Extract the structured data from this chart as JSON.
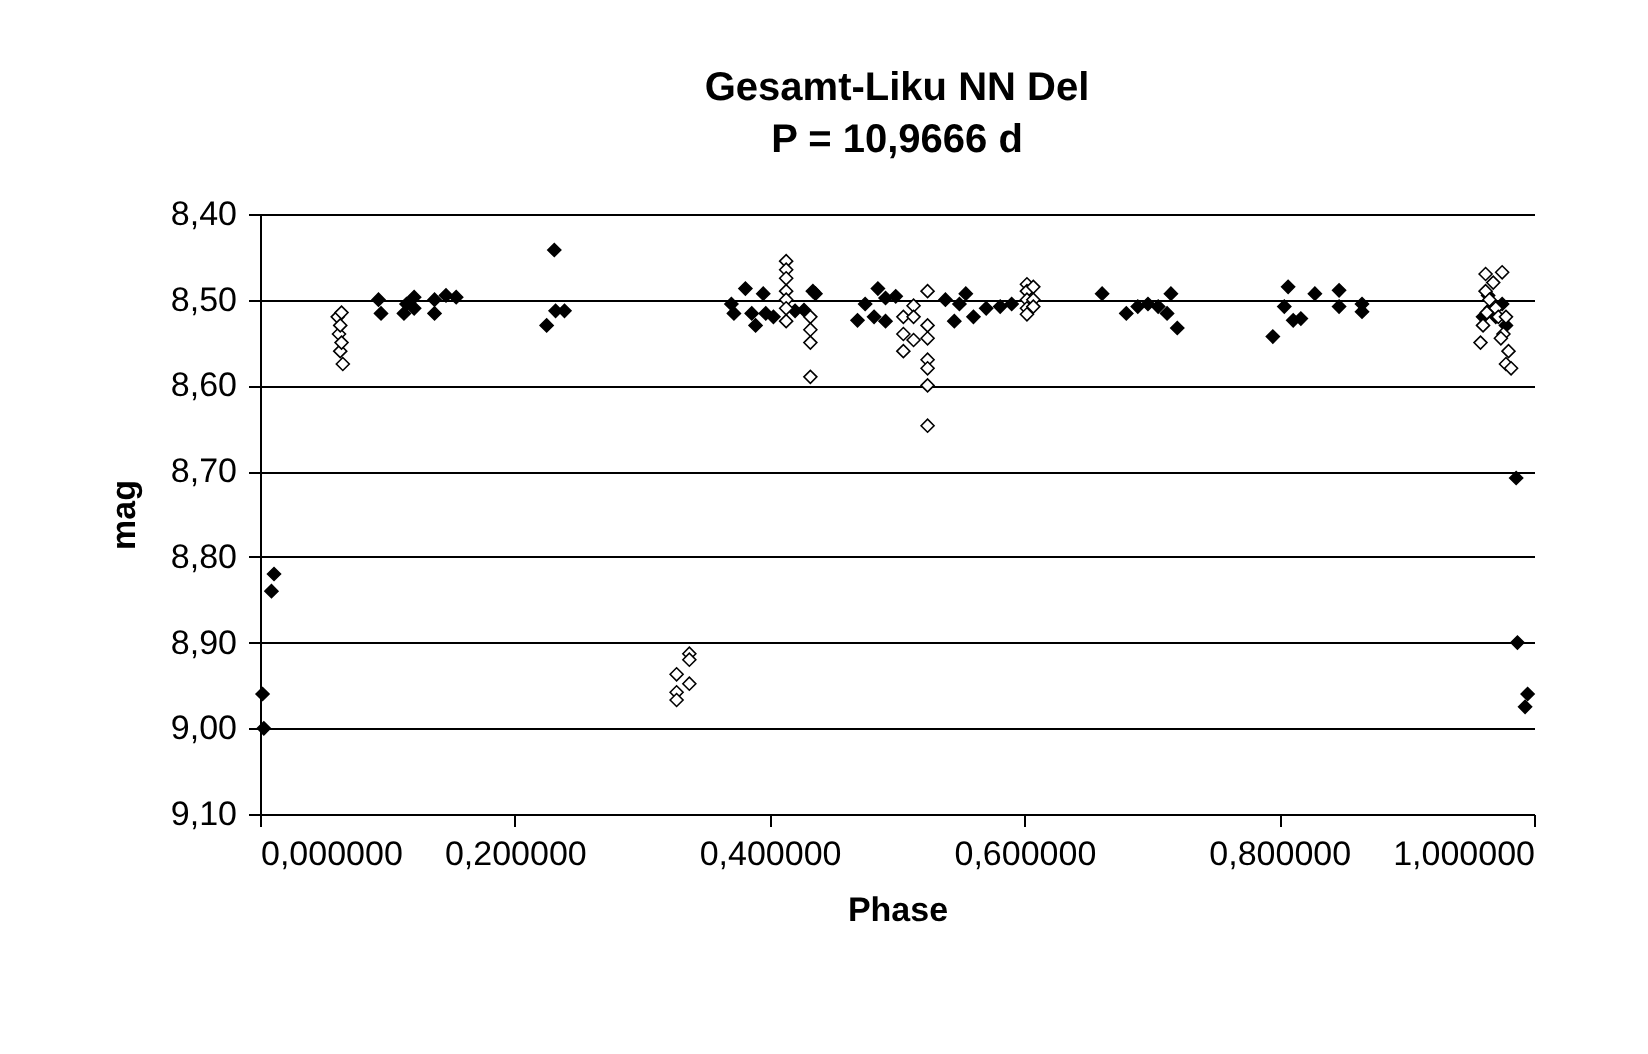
{
  "chart_data": {
    "type": "scatter",
    "title": "Gesamt-Liku NN Del",
    "subtitle": "P = 10,9666 d",
    "xlabel": "Phase",
    "ylabel": "mag",
    "xlim": [
      0,
      1
    ],
    "xticks": [
      {
        "value": 0,
        "label": "0,000000"
      },
      {
        "value": 0.2,
        "label": "0,200000"
      },
      {
        "value": 0.4,
        "label": "0,400000"
      },
      {
        "value": 0.6,
        "label": "0,600000"
      },
      {
        "value": 0.8,
        "label": "0,800000"
      },
      {
        "value": 1,
        "label": "1,000000"
      }
    ],
    "ylim": [
      9.1,
      8.4
    ],
    "yticks": [
      {
        "value": 8.4,
        "label": "8,40"
      },
      {
        "value": 8.5,
        "label": "8,50"
      },
      {
        "value": 8.6,
        "label": "8,60"
      },
      {
        "value": 8.7,
        "label": "8,70"
      },
      {
        "value": 8.8,
        "label": "8,80"
      },
      {
        "value": 8.9,
        "label": "8,90"
      },
      {
        "value": 9.0,
        "label": "9,00"
      },
      {
        "value": 9.1,
        "label": "9,10"
      }
    ],
    "grid": "y",
    "marker": "diamond",
    "series": [
      {
        "color": "#000000",
        "x": [
          0.002,
          0.003,
          0.011,
          0.009,
          0.093,
          0.095,
          0.113,
          0.115,
          0.121,
          0.121,
          0.137,
          0.137,
          0.146,
          0.154,
          0.225,
          0.231,
          0.232,
          0.239,
          0.37,
          0.372,
          0.381,
          0.386,
          0.389,
          0.395,
          0.397,
          0.403,
          0.42,
          0.427,
          0.434,
          0.436,
          0.469,
          0.475,
          0.482,
          0.485,
          0.491,
          0.491,
          0.499,
          0.538,
          0.545,
          0.549,
          0.554,
          0.56,
          0.57,
          0.581,
          0.59,
          0.661,
          0.68,
          0.689,
          0.697,
          0.705,
          0.712,
          0.715,
          0.72,
          0.795,
          0.804,
          0.807,
          0.811,
          0.817,
          0.828,
          0.847,
          0.847,
          0.865,
          0.865,
          0.96,
          0.964,
          0.966,
          0.97,
          0.975,
          0.978,
          0.986,
          0.987,
          0.993,
          0.995
        ],
        "values": [
          8.96,
          9.0,
          8.82,
          8.84,
          8.5,
          8.516,
          8.516,
          8.505,
          8.497,
          8.51,
          8.5,
          8.516,
          8.495,
          8.497,
          8.53,
          8.442,
          8.513,
          8.513,
          8.505,
          8.516,
          8.487,
          8.516,
          8.53,
          8.493,
          8.516,
          8.52,
          8.513,
          8.512,
          8.49,
          8.493,
          8.524,
          8.505,
          8.52,
          8.487,
          8.525,
          8.498,
          8.496,
          8.5,
          8.525,
          8.505,
          8.493,
          8.52,
          8.51,
          8.508,
          8.505,
          8.493,
          8.516,
          8.508,
          8.505,
          8.508,
          8.516,
          8.493,
          8.533,
          8.543,
          8.508,
          8.485,
          8.524,
          8.522,
          8.493,
          8.489,
          8.508,
          8.505,
          8.514,
          8.52,
          8.495,
          8.51,
          8.52,
          8.505,
          8.53,
          8.708,
          8.9,
          8.975,
          8.96
        ]
      },
      {
        "color": "#ffffff",
        "x": [
          0.061,
          0.062,
          0.063,
          0.063,
          0.064,
          0.064,
          0.065,
          0.327,
          0.327,
          0.327,
          0.337,
          0.337,
          0.337,
          0.413,
          0.413,
          0.413,
          0.413,
          0.413,
          0.413,
          0.413,
          0.432,
          0.432,
          0.432,
          0.432,
          0.505,
          0.505,
          0.505,
          0.513,
          0.513,
          0.513,
          0.524,
          0.524,
          0.524,
          0.524,
          0.524,
          0.524,
          0.524,
          0.602,
          0.602,
          0.602,
          0.602,
          0.602,
          0.607,
          0.607,
          0.607,
          0.962,
          0.968,
          0.975,
          0.962,
          0.965,
          0.97,
          0.972,
          0.96,
          0.978,
          0.976,
          0.98,
          0.978,
          0.982,
          0.974,
          0.963,
          0.958
        ],
        "values": [
          8.52,
          8.54,
          8.53,
          8.56,
          8.55,
          8.515,
          8.575,
          8.937,
          8.958,
          8.967,
          8.913,
          8.92,
          8.948,
          8.455,
          8.465,
          8.475,
          8.49,
          8.5,
          8.51,
          8.525,
          8.52,
          8.535,
          8.55,
          8.59,
          8.52,
          8.54,
          8.56,
          8.507,
          8.52,
          8.547,
          8.49,
          8.53,
          8.545,
          8.57,
          8.58,
          8.6,
          8.647,
          8.482,
          8.49,
          8.5,
          8.51,
          8.517,
          8.485,
          8.5,
          8.508,
          8.47,
          8.48,
          8.468,
          8.49,
          8.5,
          8.51,
          8.52,
          8.53,
          8.52,
          8.54,
          8.56,
          8.575,
          8.58,
          8.545,
          8.515,
          8.55
        ]
      }
    ]
  }
}
